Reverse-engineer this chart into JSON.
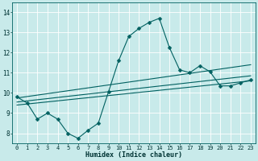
{
  "xlabel": "Humidex (Indice chaleur)",
  "xlim": [
    -0.5,
    23.5
  ],
  "ylim": [
    7.5,
    14.5
  ],
  "yticks": [
    8,
    9,
    10,
    11,
    12,
    13,
    14
  ],
  "xticks": [
    0,
    1,
    2,
    3,
    4,
    5,
    6,
    7,
    8,
    9,
    10,
    11,
    12,
    13,
    14,
    15,
    16,
    17,
    18,
    19,
    20,
    21,
    22,
    23
  ],
  "bg_color": "#c8eaea",
  "line_color": "#006060",
  "grid_color": "#ffffff",
  "lines": [
    {
      "x": [
        0,
        1,
        2,
        3,
        4,
        5,
        6,
        7,
        8,
        9,
        10,
        11,
        12,
        13,
        14,
        15,
        16,
        17,
        18,
        19,
        20,
        21,
        22,
        23
      ],
      "y": [
        9.8,
        9.5,
        8.7,
        9.0,
        8.7,
        8.0,
        7.75,
        8.15,
        8.5,
        10.05,
        11.6,
        12.8,
        13.2,
        13.5,
        13.7,
        12.25,
        11.15,
        11.0,
        11.35,
        11.05,
        10.35,
        10.35,
        10.5,
        10.65
      ],
      "has_marker": true,
      "markersize": 2.5
    },
    {
      "x": [
        0,
        23
      ],
      "y": [
        9.75,
        11.4
      ],
      "has_marker": false
    },
    {
      "x": [
        0,
        23
      ],
      "y": [
        9.55,
        10.85
      ],
      "has_marker": false
    },
    {
      "x": [
        0,
        23
      ],
      "y": [
        9.4,
        10.6
      ],
      "has_marker": false
    }
  ]
}
